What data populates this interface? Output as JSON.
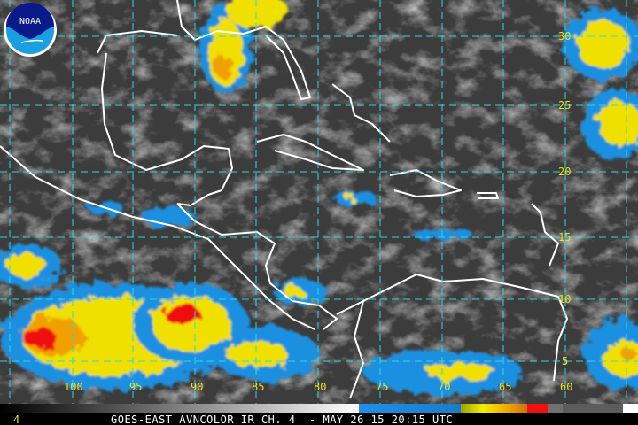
{
  "title": "GOES-EAST AVNCOLOR IR CH. 4  - MAY 26 15 20:15 UTC",
  "channel_label": "4",
  "logo": {
    "text": "NOAA",
    "icon": "noaa-logo"
  },
  "latitude_labels": [
    "30",
    "25",
    "20",
    "15",
    "10",
    "5"
  ],
  "longitude_labels": [
    "100",
    "95",
    "90",
    "85",
    "80",
    "75",
    "70",
    "65",
    "60"
  ],
  "colors": {
    "grid": "#30d8e0",
    "coast": "#ffffff",
    "label": "#f0e020",
    "cold_blue": "#1e90e0",
    "yellow": "#f0e000",
    "orange": "#f0a000",
    "red": "#f01010"
  }
}
